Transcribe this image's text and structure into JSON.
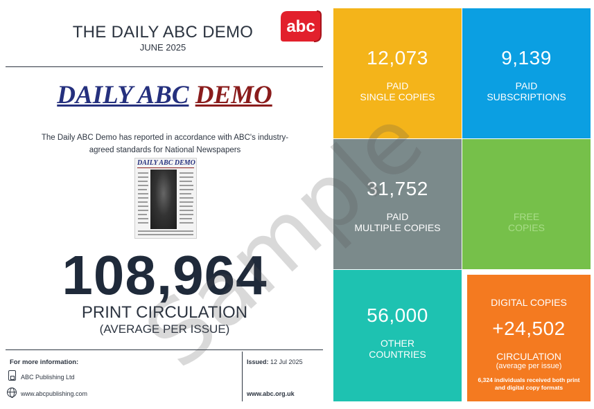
{
  "header": {
    "title": "THE DAILY ABC DEMO",
    "date": "JUNE 2025",
    "logo_text": "abc"
  },
  "masthead": {
    "part1": "DAILY ABC",
    "part2": "DEMO"
  },
  "description": "The Daily ABC Demo has reported in accordance with ABC's industry-agreed standards for National Newspapers",
  "thumbnail": {
    "title": "DAILY ABC DEMO"
  },
  "circulation": {
    "value": "108,964",
    "label": "PRINT CIRCULATION",
    "sublabel": "(AVERAGE PER ISSUE)"
  },
  "footer": {
    "more_info": "For more information:",
    "publisher": "ABC Publishing Ltd",
    "website": "www.abcpublishing.com",
    "issued_label": "Issued:",
    "issued_date": "12 Jul 2025",
    "abc_url": "www.abc.org.uk"
  },
  "tiles": {
    "paid_single": {
      "value": "12,073",
      "label1": "PAID",
      "label2": "SINGLE COPIES"
    },
    "paid_subs": {
      "value": "9,139",
      "label1": "PAID",
      "label2": "SUBSCRIPTIONS"
    },
    "paid_multiple": {
      "value": "31,752",
      "label1": "PAID",
      "label2": "MULTIPLE COPIES"
    },
    "free": {
      "label1": "FREE",
      "label2": "COPIES"
    },
    "other": {
      "value": "56,000",
      "label1": "OTHER",
      "label2": "COUNTRIES"
    },
    "digital": {
      "heading": "DIGITAL COPIES",
      "value": "+24,502",
      "label1": "CIRCULATION",
      "label2": "(average per issue)",
      "note": "6,324 individuals received both print and digital copy formats"
    }
  },
  "watermark": "Sample",
  "colors": {
    "navy": "#25307e",
    "maroon": "#8a1c1c",
    "yellow": "#f4b41a",
    "blue": "#0b9fe2",
    "grey": "#7b8a8b",
    "green": "#76c04a",
    "teal": "#1ec2b1",
    "orange": "#f47a20",
    "abc_red": "#e2202c"
  }
}
